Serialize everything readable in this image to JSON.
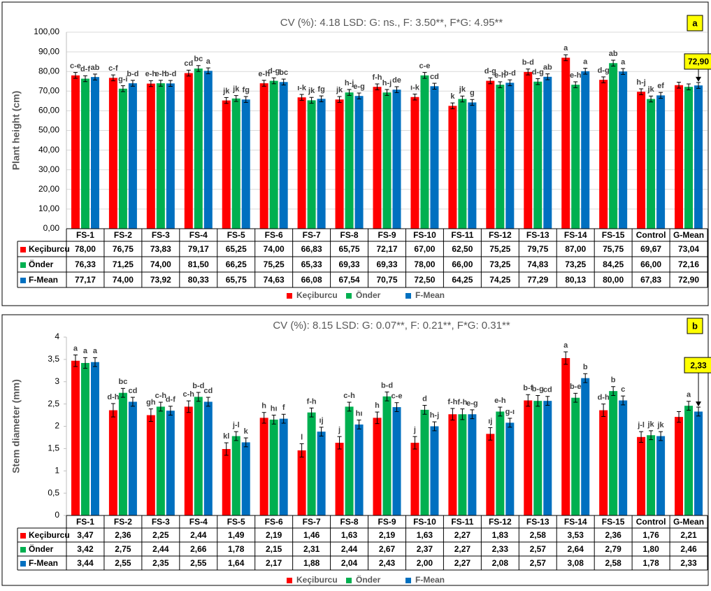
{
  "chart_data": [
    {
      "type": "bar",
      "tag": "a",
      "title": "CV (%): 4.18   LSD: G: ns., F: 3.50**, F*G: 4.95**",
      "y_label": "Plant height (cm)",
      "categories": [
        "FS-1",
        "FS-2",
        "FS-3",
        "FS-4",
        "FS-5",
        "FS-6",
        "FS-7",
        "FS-8",
        "FS-9",
        "FS-10",
        "FS-11",
        "FS-12",
        "FS-13",
        "FS-14",
        "FS-15",
        "Control",
        "G-Mean"
      ],
      "ylim": [
        0,
        100
      ],
      "yticks": [
        {
          "value": 0,
          "label": "0,00"
        },
        {
          "value": 10,
          "label": "10,00"
        },
        {
          "value": 20,
          "label": "20,00"
        },
        {
          "value": 30,
          "label": "30,00"
        },
        {
          "value": 40,
          "label": "40,00"
        },
        {
          "value": 50,
          "label": "50,00"
        },
        {
          "value": 60,
          "label": "60,00"
        },
        {
          "value": 70,
          "label": "70,00"
        },
        {
          "value": 80,
          "label": "80,00"
        },
        {
          "value": 90,
          "label": "90,00"
        },
        {
          "value": 100,
          "label": "100,00"
        }
      ],
      "grid": true,
      "callout": "72,90",
      "series": [
        {
          "name": "Keçiburcu",
          "color": "#ff0000",
          "values": [
            78,
            76.75,
            73.83,
            79.17,
            65.25,
            74,
            66.83,
            65.75,
            72.17,
            67,
            62.5,
            75.25,
            79.75,
            87,
            75.75,
            69.67,
            73.04
          ],
          "value_labels": [
            "78,00",
            "76,75",
            "73,83",
            "79,17",
            "65,25",
            "74,00",
            "66,83",
            "65,75",
            "72,17",
            "67,00",
            "62,50",
            "75,25",
            "79,75",
            "87,00",
            "75,75",
            "69,67",
            "73,04"
          ],
          "errors": [
            1.5,
            1.5,
            1.5,
            1.5,
            1.5,
            1.5,
            1.5,
            1.5,
            1.5,
            1.5,
            1.5,
            1.5,
            1.5,
            1.5,
            1.5,
            1.5,
            1.5
          ],
          "letters": [
            "c-e",
            "c-f",
            "e-h",
            "cd",
            "jk",
            "e-h",
            "ı-k",
            "jk",
            "f-h",
            "ı-k",
            "k",
            "d-g",
            "b-d",
            "a",
            "d-g",
            "h-j",
            null
          ]
        },
        {
          "name": "Önder",
          "color": "#00b050",
          "values": [
            76.33,
            71.25,
            74,
            81.5,
            66.25,
            75.25,
            65.33,
            69.33,
            69.33,
            78,
            66,
            73.25,
            74.83,
            73.25,
            84.25,
            66,
            72.16
          ],
          "value_labels": [
            "76,33",
            "71,25",
            "74,00",
            "81,50",
            "66,25",
            "75,25",
            "65,33",
            "69,33",
            "69,33",
            "78,00",
            "66,00",
            "73,25",
            "74,83",
            "73,25",
            "84,25",
            "66,00",
            "72,16"
          ],
          "errors": [
            1.5,
            1.5,
            1.5,
            1.5,
            1.5,
            1.5,
            1.5,
            1.5,
            1.5,
            1.5,
            1.5,
            1.5,
            1.5,
            1.5,
            1.5,
            1.5,
            1.5
          ],
          "letters": [
            "d-f",
            "g-i",
            "e-h",
            "bc",
            "jk",
            "d-g",
            "jk",
            "h-j",
            "h-j",
            "c-e",
            "jk",
            "e-h",
            "d-g",
            "e-h",
            "ab",
            "jk",
            null
          ]
        },
        {
          "name": "F-Mean",
          "color": "#0070c0",
          "values": [
            77.17,
            74,
            73.92,
            80.33,
            65.75,
            74.63,
            66.08,
            67.54,
            70.75,
            72.5,
            64.25,
            74.25,
            77.29,
            80.13,
            80,
            67.83,
            72.9
          ],
          "value_labels": [
            "77,17",
            "74,00",
            "73,92",
            "80,33",
            "65,75",
            "74,63",
            "66,08",
            "67,54",
            "70,75",
            "72,50",
            "64,25",
            "74,25",
            "77,29",
            "80,13",
            "80,00",
            "67,83",
            "72,90"
          ],
          "errors": [
            1.5,
            1.5,
            1.5,
            1.5,
            1.5,
            1.5,
            1.5,
            1.5,
            1.5,
            1.5,
            1.5,
            1.5,
            1.5,
            1.5,
            1.5,
            1.5,
            1.5
          ],
          "letters": [
            "ab",
            "b-d",
            "b-d",
            "a",
            "fg",
            "bc",
            "fg",
            "e-g",
            "de",
            "cd",
            "g",
            "b-d",
            "ab",
            "a",
            "a",
            "ef",
            null
          ]
        }
      ]
    },
    {
      "type": "bar",
      "tag": "b",
      "title": "CV (%): 8.15   LSD: G: 0.07**, F: 0.21**, F*G: 0.31**",
      "y_label": "Stem diameter (mm)",
      "categories": [
        "FS-1",
        "FS-2",
        "FS-3",
        "FS-4",
        "FS-5",
        "FS-6",
        "FS-7",
        "FS-8",
        "FS-9",
        "FS-10",
        "FS-11",
        "FS-12",
        "FS-13",
        "FS-14",
        "FS-15",
        "Control",
        "G-Mean"
      ],
      "ylim": [
        0,
        4
      ],
      "yticks": [
        0,
        {
          "value": 0.5,
          "label": "0,5"
        },
        1,
        {
          "value": 1.5,
          "label": "1,5"
        },
        2,
        {
          "value": 2.5,
          "label": "2,5"
        },
        3,
        {
          "value": 3.5,
          "label": "3,5"
        },
        4
      ],
      "grid": false,
      "callout": "2,33",
      "series": [
        {
          "name": "Keçiburcu",
          "color": "#ff0000",
          "values": [
            3.47,
            2.36,
            2.25,
            2.44,
            1.49,
            2.19,
            1.46,
            1.63,
            2.19,
            1.63,
            2.27,
            1.83,
            2.58,
            3.53,
            2.36,
            1.76,
            2.21
          ],
          "value_labels": [
            "3,47",
            "2,36",
            "2,25",
            "2,44",
            "1,49",
            "2,19",
            "1,46",
            "1,63",
            "2,19",
            "1,63",
            "2,27",
            "1,83",
            "2,58",
            "3,53",
            "2,36",
            "1,76",
            "2,21"
          ],
          "errors": [
            0.13,
            0.15,
            0.14,
            0.13,
            0.14,
            0.12,
            0.15,
            0.14,
            0.13,
            0.14,
            0.13,
            0.14,
            0.13,
            0.14,
            0.14,
            0.12,
            0.12
          ],
          "letters": [
            "a",
            "d-h",
            "gh",
            "c-h",
            "kl",
            "h",
            "l",
            "j",
            "h",
            "j",
            "f-h",
            "ıj",
            "b-f",
            "a",
            "d-h",
            "j-l",
            null
          ]
        },
        {
          "name": "Önder",
          "color": "#00b050",
          "values": [
            3.42,
            2.75,
            2.44,
            2.66,
            1.78,
            2.15,
            2.31,
            2.44,
            2.67,
            2.37,
            2.27,
            2.33,
            2.57,
            2.64,
            2.79,
            1.8,
            2.46
          ],
          "value_labels": [
            "3,42",
            "2,75",
            "2,44",
            "2,66",
            "1,78",
            "2,15",
            "2,31",
            "2,44",
            "2,67",
            "2,37",
            "2,27",
            "2,33",
            "2,57",
            "2,64",
            "2,79",
            "1,80",
            "2,46"
          ],
          "errors": [
            0.12,
            0.1,
            0.1,
            0.1,
            0.1,
            0.1,
            0.1,
            0.1,
            0.1,
            0.1,
            0.12,
            0.1,
            0.12,
            0.1,
            0.1,
            0.1,
            0.1
          ],
          "letters": [
            "a",
            "bc",
            "c-h",
            "b-d",
            "j-l",
            "hı",
            "f-h",
            "c-h",
            "b-d",
            "d",
            "f-h",
            "e-h",
            "b-g",
            "b-e",
            "b",
            "jk",
            "a"
          ]
        },
        {
          "name": "F-Mean",
          "color": "#0070c0",
          "values": [
            3.44,
            2.55,
            2.35,
            2.55,
            1.64,
            2.17,
            1.88,
            2.04,
            2.43,
            2,
            2.27,
            2.08,
            2.57,
            3.08,
            2.58,
            1.78,
            2.33
          ],
          "value_labels": [
            "3,44",
            "2,55",
            "2,35",
            "2,55",
            "1,64",
            "2,17",
            "1,88",
            "2,04",
            "2,43",
            "2,00",
            "2,27",
            "2,08",
            "2,57",
            "3,08",
            "2,58",
            "1,78",
            "2,33"
          ],
          "errors": [
            0.1,
            0.1,
            0.1,
            0.1,
            0.1,
            0.1,
            0.1,
            0.1,
            0.1,
            0.1,
            0.1,
            0.1,
            0.1,
            0.1,
            0.1,
            0.1,
            0.1
          ],
          "letters": [
            "a",
            "cd",
            "d-f",
            "cd",
            "k",
            "f",
            "ıj",
            "hı",
            "c-e",
            "h-j",
            "e-g",
            "g-ı",
            "cd",
            "b",
            "c",
            "jk",
            null
          ]
        }
      ]
    }
  ]
}
